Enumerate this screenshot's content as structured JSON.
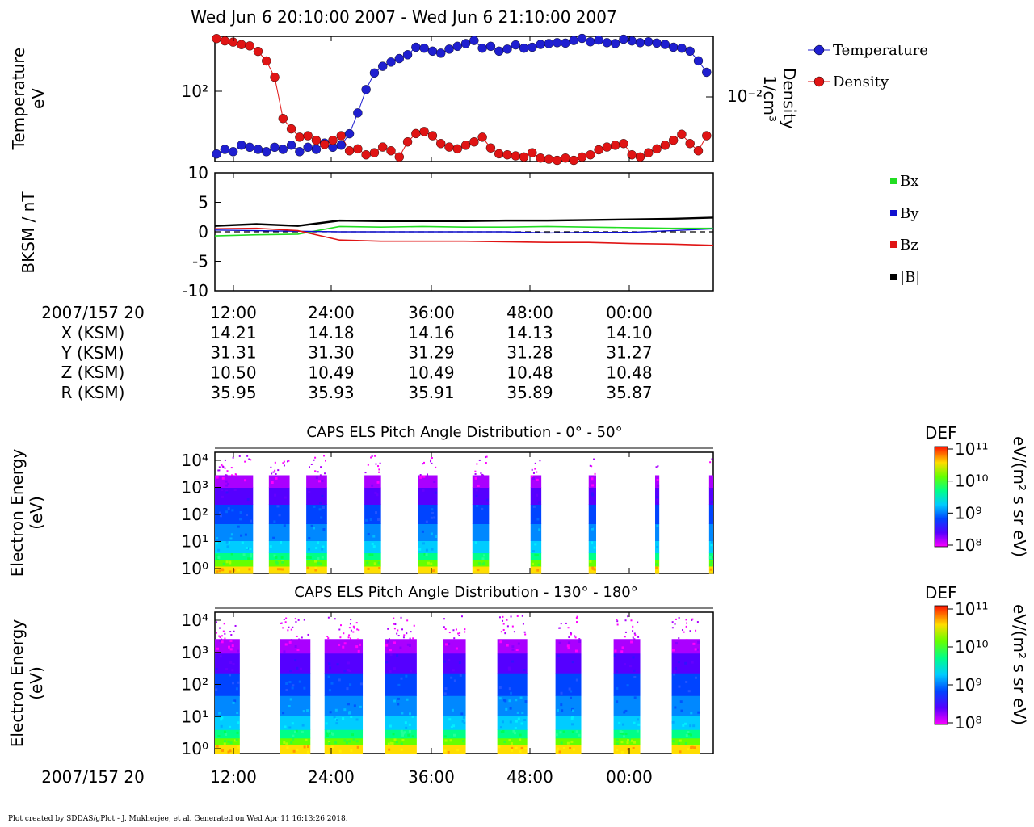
{
  "title": "Wed Jun 6 20:10:00 2007 - Wed Jun 6 21:10:00 2007",
  "footer": "Plot created by SDDAS/gPlot - J. Mukherjee, et al.  Generated on Wed Apr 11 16:13:26 2018.",
  "colors": {
    "temperature": "#1f1fd0",
    "density": "#e01414",
    "bx": "#22dd22",
    "by": "#1010d0",
    "bz": "#e01414",
    "bmag": "#000000"
  },
  "chart_data": [
    {
      "type": "scatter",
      "panel": "moments",
      "ylabel_left": [
        "Temperature",
        "eV"
      ],
      "ylabel_right": [
        "Density",
        "1/cm³"
      ],
      "left_tick": "10²",
      "right_tick": "10⁻²",
      "legend": [
        "Temperature",
        "Density"
      ],
      "x_minutes": [
        0,
        1,
        2,
        3,
        4,
        5,
        6,
        7,
        8,
        9,
        10,
        11,
        12,
        13,
        14,
        15,
        16,
        17,
        18,
        19,
        20,
        21,
        22,
        23,
        24,
        25,
        26,
        27,
        28,
        29,
        30,
        31,
        32,
        33,
        34,
        35,
        36,
        37,
        38,
        39,
        40,
        41,
        42,
        43,
        44,
        45,
        46,
        47,
        48,
        49,
        50,
        51,
        52,
        53,
        54,
        55,
        56,
        57,
        58,
        59
      ],
      "temperature_eV": [
        28,
        30,
        29,
        32,
        31,
        30,
        29,
        31,
        30,
        32,
        29,
        31,
        30,
        33,
        31,
        32,
        38,
        52,
        74,
        95,
        105,
        112,
        118,
        125,
        140,
        138,
        132,
        128,
        136,
        142,
        148,
        155,
        138,
        142,
        132,
        136,
        145,
        138,
        140,
        146,
        148,
        150,
        149,
        155,
        160,
        152,
        156,
        150,
        148,
        158,
        154,
        150,
        152,
        149,
        146,
        140,
        138,
        132,
        114,
        96
      ],
      "density_cm3": [
        0.046,
        0.044,
        0.043,
        0.041,
        0.04,
        0.036,
        0.03,
        0.022,
        0.01,
        0.0082,
        0.007,
        0.0072,
        0.0066,
        0.0061,
        0.0066,
        0.0072,
        0.0054,
        0.0056,
        0.005,
        0.0052,
        0.0058,
        0.0054,
        0.0048,
        0.0064,
        0.0075,
        0.0078,
        0.0072,
        0.0062,
        0.0058,
        0.0056,
        0.006,
        0.0064,
        0.007,
        0.0057,
        0.0051,
        0.005,
        0.0049,
        0.0048,
        0.0052,
        0.0047,
        0.0046,
        0.0045,
        0.0047,
        0.0045,
        0.0048,
        0.005,
        0.0055,
        0.0058,
        0.006,
        0.0062,
        0.005,
        0.0048,
        0.0052,
        0.0056,
        0.006,
        0.0066,
        0.0074,
        0.0062,
        0.0054,
        0.0072
      ]
    },
    {
      "type": "line",
      "panel": "magnetic_field",
      "ylabel": "BKSM / nT",
      "ylim": [
        -10,
        10
      ],
      "yticks": [
        "10",
        "5",
        "0",
        "-5",
        "-10"
      ],
      "legend": [
        "Bx",
        "By",
        "Bz",
        "|B|"
      ],
      "x_minutes": [
        0,
        5,
        10,
        15,
        20,
        25,
        30,
        35,
        40,
        45,
        50,
        55,
        60
      ],
      "series": [
        {
          "name": "Bx",
          "values": [
            -0.7,
            -0.5,
            -0.4,
            0.9,
            0.8,
            0.9,
            0.8,
            0.8,
            0.9,
            0.8,
            0.7,
            0.6,
            0.6
          ]
        },
        {
          "name": "By",
          "values": [
            0.3,
            0.2,
            0.1,
            0.0,
            0.0,
            0.0,
            0.0,
            0.0,
            -0.2,
            -0.1,
            -0.1,
            0.2,
            0.5
          ]
        },
        {
          "name": "Bz",
          "values": [
            0.5,
            0.6,
            0.2,
            -1.4,
            -1.6,
            -1.6,
            -1.6,
            -1.7,
            -1.8,
            -1.8,
            -2.0,
            -2.1,
            -2.3
          ]
        },
        {
          "name": "|B|",
          "values": [
            1.0,
            1.3,
            1.0,
            1.9,
            1.8,
            1.8,
            1.8,
            1.9,
            1.9,
            2.0,
            2.1,
            2.2,
            2.4
          ]
        }
      ]
    },
    {
      "type": "heatmap",
      "panel": "els_0_50",
      "title": "CAPS ELS Pitch Angle Distribution - 0° - 50°",
      "ylabel": [
        "Electron Energy",
        "(eV)"
      ],
      "yticks": [
        "10⁴",
        "10³",
        "10²",
        "10¹",
        "10⁰"
      ],
      "colorbar": {
        "label": "DEF",
        "unit": "eV/(m² s sr eV)",
        "ticks": [
          "10¹¹",
          "10¹⁰",
          "10⁹",
          "10⁸"
        ]
      },
      "burst_start_min": [
        0,
        6.5,
        11,
        18,
        24.5,
        31,
        38,
        45,
        53,
        59.5
      ],
      "burst_end_min": [
        4.6,
        9.0,
        13.5,
        20,
        26.8,
        33,
        39.3,
        45.9,
        53.5,
        60
      ]
    },
    {
      "type": "heatmap",
      "panel": "els_130_180",
      "title": "CAPS ELS Pitch Angle Distribution - 130° - 180°",
      "ylabel": [
        "Electron Energy",
        "(eV)"
      ],
      "yticks": [
        "10⁴",
        "10³",
        "10²",
        "10¹",
        "10⁰"
      ],
      "colorbar": {
        "label": "DEF",
        "unit": "eV/(m² s sr eV)",
        "ticks": [
          "10¹¹",
          "10¹⁰",
          "10⁹",
          "10⁸"
        ]
      },
      "burst_start_min": [
        0,
        7.8,
        13.2,
        20.5,
        27.5,
        34,
        41,
        48,
        55
      ],
      "burst_end_min": [
        3.0,
        11.5,
        17.8,
        24.3,
        30.2,
        37.6,
        44.1,
        51.2,
        58.4
      ]
    }
  ],
  "time_axis": {
    "row_label": "2007/157 20",
    "ticks": [
      "12:00",
      "24:00",
      "36:00",
      "48:00",
      "00:00"
    ],
    "ephemeris": [
      {
        "label": "X (KSM)",
        "values": [
          "14.21",
          "14.18",
          "14.16",
          "14.13",
          "14.10"
        ]
      },
      {
        "label": "Y (KSM)",
        "values": [
          "31.31",
          "31.30",
          "31.29",
          "31.28",
          "31.27"
        ]
      },
      {
        "label": "Z (KSM)",
        "values": [
          "10.50",
          "10.49",
          "10.49",
          "10.48",
          "10.48"
        ]
      },
      {
        "label": "R (KSM)",
        "values": [
          "35.95",
          "35.93",
          "35.91",
          "35.89",
          "35.87"
        ]
      }
    ]
  }
}
